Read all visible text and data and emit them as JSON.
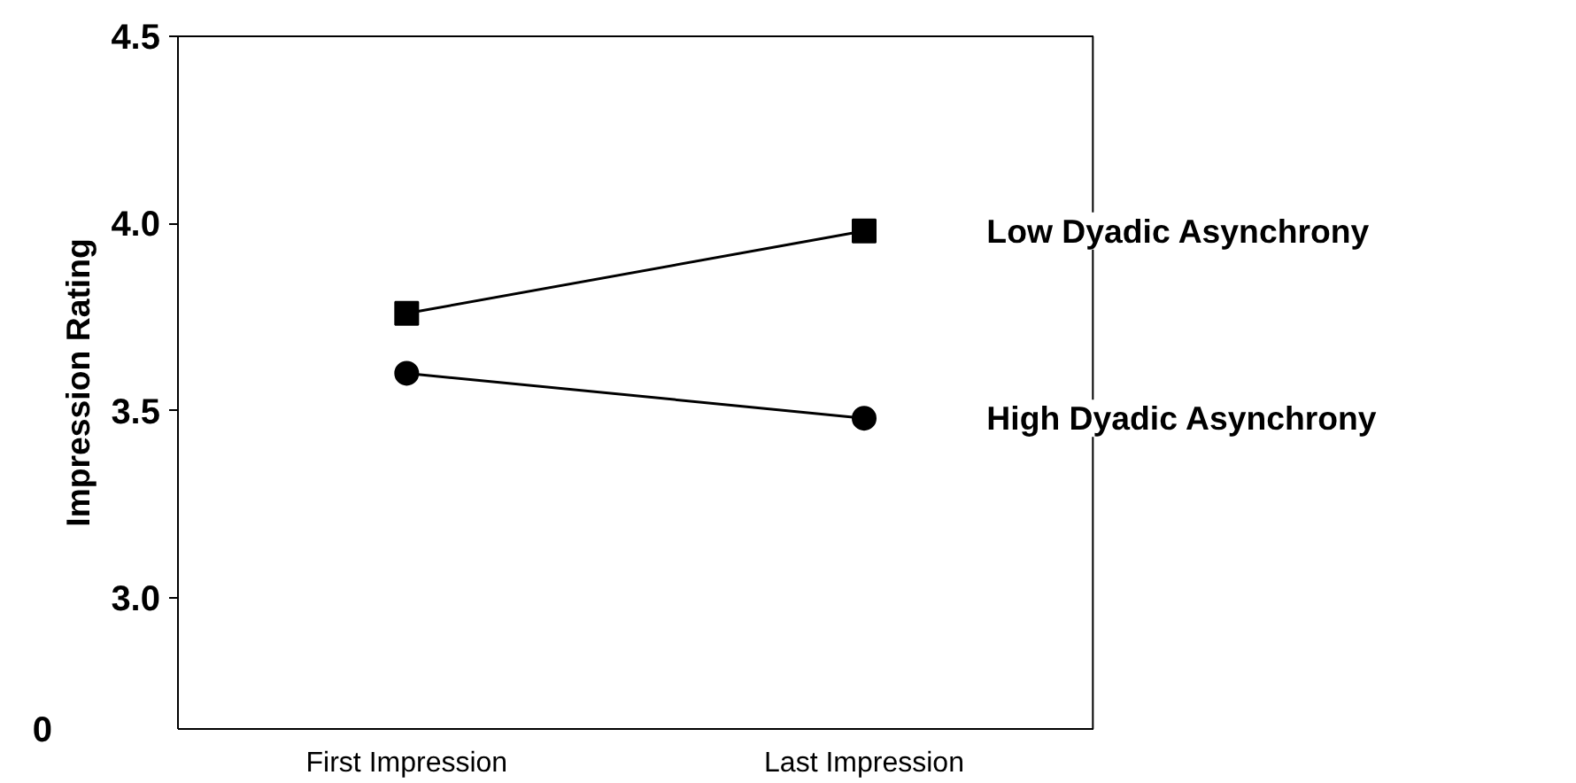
{
  "chart_data": {
    "type": "line",
    "ylabel": "Impression Rating",
    "categories": [
      "First Impression",
      "Last Impression"
    ],
    "series": [
      {
        "name": "Low Dyadic Asynchrony",
        "color": "#000000",
        "marker": "square",
        "values": [
          3.76,
          3.98
        ]
      },
      {
        "name": "High Dyadic Asynchrony",
        "color": "#000000",
        "marker": "circle",
        "values": [
          3.6,
          3.48
        ]
      }
    ],
    "ylim": [
      2.65,
      4.5
    ],
    "yticks": [
      {
        "value": 3.0,
        "label": "3.0"
      },
      3.5,
      {
        "value": 4.0,
        "label": "4.0"
      },
      4.5
    ],
    "annotations": [
      "0"
    ],
    "legend": false,
    "grid": false,
    "line_style": "solid"
  }
}
